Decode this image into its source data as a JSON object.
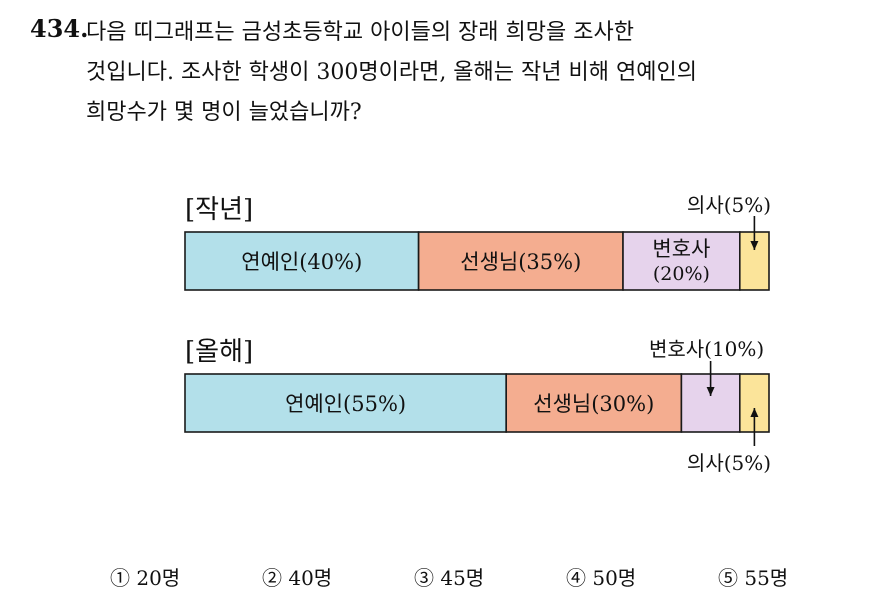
{
  "question": {
    "number": "434.",
    "lines": [
      "다음 띠그래프는 금성초등학교 아이들의 장래 희망을 조사한",
      "것입니다. 조사한 학생이 300명이라면, 올해는 작년 비해 연예인의",
      "희망수가 몇 명이 늘었습니까?"
    ]
  },
  "chart_data": [
    {
      "type": "bar",
      "title": "[작년]",
      "categories": [
        "연예인",
        "선생님",
        "변호사",
        "의사"
      ],
      "values": [
        40,
        35,
        20,
        5
      ],
      "labels": [
        "연예인(40%)",
        "선생님(35%)",
        "변호사\n(20%)",
        "의사(5%)"
      ],
      "colors": [
        "#b3e0ea",
        "#f4ad90",
        "#e6d3ec",
        "#fbe49a"
      ]
    },
    {
      "type": "bar",
      "title": "[올해]",
      "categories": [
        "연예인",
        "선생님",
        "변호사",
        "의사"
      ],
      "values": [
        55,
        30,
        10,
        5
      ],
      "labels": [
        "연예인(55%)",
        "선생님(30%)",
        "변호사(10%)",
        "의사(5%)"
      ],
      "colors": [
        "#b3e0ea",
        "#f4ad90",
        "#e6d3ec",
        "#fbe49a"
      ]
    }
  ],
  "choices": [
    "① 20명",
    "② 40명",
    "③ 45명",
    "④ 50명",
    "⑤ 55명"
  ]
}
